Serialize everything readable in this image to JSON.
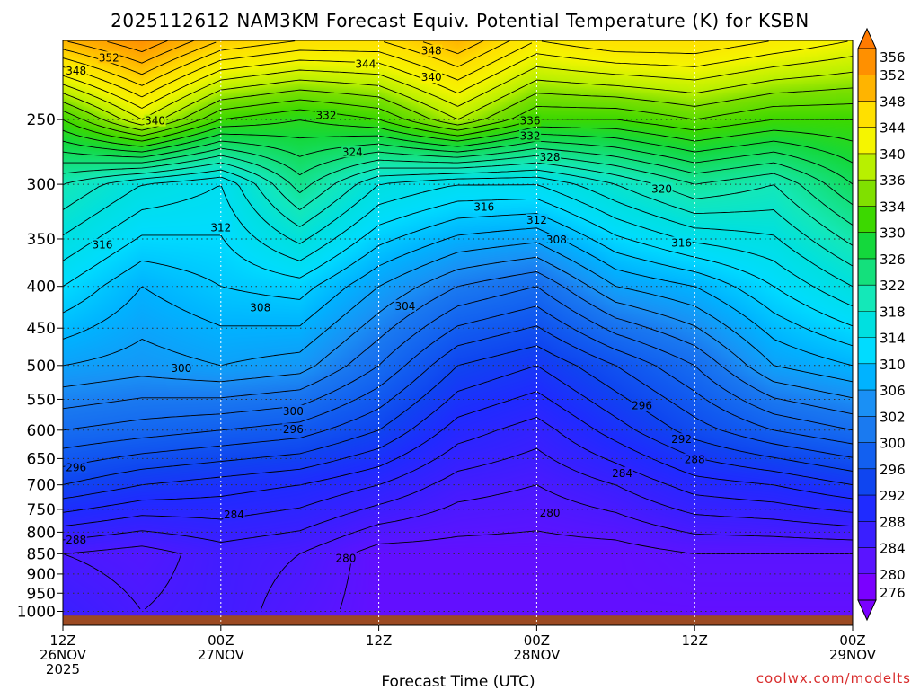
{
  "title": "2025112612 NAM3KM Forecast Equiv. Potential Temperature (K) for KSBN",
  "xlabel": "Forecast Time (UTC)",
  "credit": "coolwx.com/modelts",
  "colors": {
    "ground": "#9c4a22",
    "grid": "#333333",
    "time_grid": "#ffffff",
    "contour": "#000000"
  },
  "chart_data": {
    "type": "heatmap",
    "title": "2025112612 NAM3KM Forecast Equiv. Potential Temperature (K) for KSBN",
    "xlabel": "Forecast Time (UTC)",
    "ylabel": "",
    "x_range_hours": [
      0,
      60
    ],
    "y_range_hPa": [
      1040,
      200
    ],
    "y_ticks": [
      250,
      300,
      350,
      400,
      450,
      500,
      550,
      600,
      650,
      700,
      750,
      800,
      850,
      900,
      950,
      1000
    ],
    "x_ticks": [
      {
        "hour": 0,
        "label": [
          "12Z",
          "26NOV",
          "2025"
        ]
      },
      {
        "hour": 12,
        "label": [
          "00Z",
          "27NOV"
        ]
      },
      {
        "hour": 24,
        "label": [
          "12Z"
        ]
      },
      {
        "hour": 36,
        "label": [
          "00Z",
          "28NOV"
        ]
      },
      {
        "hour": 48,
        "label": [
          "12Z"
        ]
      },
      {
        "hour": 60,
        "label": [
          "00Z",
          "29NOV"
        ]
      }
    ],
    "surface_pressure_hPa": 1012,
    "colorbar": {
      "levels": [
        276,
        280,
        284,
        288,
        292,
        296,
        300,
        302,
        306,
        310,
        314,
        318,
        322,
        326,
        330,
        334,
        336,
        340,
        344,
        348,
        352,
        356
      ],
      "colors": [
        "#7a00ff",
        "#5a14ff",
        "#3a1fff",
        "#1f2bff",
        "#0f45f0",
        "#1260f0",
        "#1a7af0",
        "#1a90f5",
        "#00b3ff",
        "#00dcff",
        "#00e0e0",
        "#14e8b8",
        "#14e07c",
        "#14d83c",
        "#3cd800",
        "#80e000",
        "#b8f000",
        "#f5f500",
        "#ffe000",
        "#ffb400",
        "#ff9000",
        "#ff7a00"
      ]
    },
    "profiles": [
      {
        "hour": 0,
        "points": [
          [
            1000,
            284
          ],
          [
            850,
            282
          ],
          [
            700,
            292
          ],
          [
            600,
            298
          ],
          [
            500,
            304
          ],
          [
            400,
            310
          ],
          [
            300,
            318
          ],
          [
            250,
            330
          ],
          [
            200,
            348
          ]
        ]
      },
      {
        "hour": 6,
        "points": [
          [
            1000,
            282
          ],
          [
            850,
            281
          ],
          [
            700,
            290
          ],
          [
            600,
            297
          ],
          [
            500,
            303
          ],
          [
            400,
            306
          ],
          [
            300,
            314
          ],
          [
            250,
            338
          ],
          [
            200,
            352
          ]
        ]
      },
      {
        "hour": 12,
        "points": [
          [
            1000,
            283
          ],
          [
            850,
            283
          ],
          [
            700,
            289
          ],
          [
            600,
            296
          ],
          [
            500,
            304
          ],
          [
            400,
            308
          ],
          [
            300,
            312
          ],
          [
            250,
            330
          ],
          [
            200,
            346
          ]
        ]
      },
      {
        "hour": 18,
        "points": [
          [
            1000,
            281
          ],
          [
            850,
            282
          ],
          [
            700,
            288
          ],
          [
            600,
            295
          ],
          [
            500,
            303
          ],
          [
            400,
            309
          ],
          [
            300,
            321
          ],
          [
            250,
            328
          ],
          [
            200,
            344
          ]
        ]
      },
      {
        "hour": 24,
        "points": [
          [
            1000,
            279
          ],
          [
            850,
            279
          ],
          [
            700,
            286
          ],
          [
            600,
            292
          ],
          [
            500,
            298
          ],
          [
            400,
            304
          ],
          [
            300,
            314
          ],
          [
            250,
            330
          ],
          [
            200,
            344
          ]
        ]
      },
      {
        "hour": 30,
        "points": [
          [
            1000,
            279
          ],
          [
            850,
            279
          ],
          [
            700,
            283
          ],
          [
            600,
            287
          ],
          [
            500,
            292
          ],
          [
            400,
            300
          ],
          [
            300,
            312
          ],
          [
            250,
            336
          ],
          [
            200,
            348
          ]
        ]
      },
      {
        "hour": 36,
        "points": [
          [
            1000,
            279
          ],
          [
            850,
            279
          ],
          [
            700,
            282
          ],
          [
            600,
            285
          ],
          [
            500,
            290
          ],
          [
            400,
            298
          ],
          [
            300,
            312
          ],
          [
            250,
            330
          ],
          [
            200,
            342
          ]
        ]
      },
      {
        "hour": 42,
        "points": [
          [
            1000,
            279
          ],
          [
            850,
            279
          ],
          [
            700,
            284
          ],
          [
            600,
            289
          ],
          [
            500,
            294
          ],
          [
            400,
            304
          ],
          [
            300,
            316
          ],
          [
            250,
            330
          ],
          [
            200,
            344
          ]
        ]
      },
      {
        "hour": 48,
        "points": [
          [
            1000,
            279
          ],
          [
            850,
            280
          ],
          [
            700,
            287
          ],
          [
            600,
            293
          ],
          [
            500,
            298
          ],
          [
            400,
            306
          ],
          [
            300,
            320
          ],
          [
            250,
            332
          ],
          [
            200,
            344
          ]
        ]
      },
      {
        "hour": 54,
        "points": [
          [
            1000,
            279
          ],
          [
            850,
            280
          ],
          [
            700,
            288
          ],
          [
            600,
            296
          ],
          [
            500,
            304
          ],
          [
            400,
            310
          ],
          [
            300,
            318
          ],
          [
            250,
            330
          ],
          [
            200,
            342
          ]
        ]
      },
      {
        "hour": 60,
        "points": [
          [
            1000,
            279
          ],
          [
            850,
            280
          ],
          [
            700,
            290
          ],
          [
            600,
            298
          ],
          [
            500,
            306
          ],
          [
            400,
            314
          ],
          [
            300,
            324
          ],
          [
            250,
            330
          ],
          [
            200,
            340
          ]
        ]
      }
    ],
    "contour_labels": [
      {
        "hour": 3.5,
        "hPa": 210,
        "value": "352"
      },
      {
        "hour": 1.0,
        "hPa": 218,
        "value": "348"
      },
      {
        "hour": 28.0,
        "hPa": 206,
        "value": "348"
      },
      {
        "hour": 23.0,
        "hPa": 214,
        "value": "344"
      },
      {
        "hour": 28.0,
        "hPa": 222,
        "value": "340"
      },
      {
        "hour": 7.0,
        "hPa": 251,
        "value": "340"
      },
      {
        "hour": 20.0,
        "hPa": 247,
        "value": "332"
      },
      {
        "hour": 35.5,
        "hPa": 251,
        "value": "336"
      },
      {
        "hour": 35.5,
        "hPa": 262,
        "value": "332"
      },
      {
        "hour": 22.0,
        "hPa": 274,
        "value": "324"
      },
      {
        "hour": 37.0,
        "hPa": 278,
        "value": "328"
      },
      {
        "hour": 45.5,
        "hPa": 304,
        "value": "320"
      },
      {
        "hour": 32.0,
        "hPa": 320,
        "value": "316"
      },
      {
        "hour": 36.0,
        "hPa": 332,
        "value": "312"
      },
      {
        "hour": 12.0,
        "hPa": 339,
        "value": "312"
      },
      {
        "hour": 3.0,
        "hPa": 356,
        "value": "316"
      },
      {
        "hour": 37.5,
        "hPa": 351,
        "value": "308"
      },
      {
        "hour": 47.0,
        "hPa": 354,
        "value": "316"
      },
      {
        "hour": 26.0,
        "hPa": 423,
        "value": "304"
      },
      {
        "hour": 15.0,
        "hPa": 425,
        "value": "308"
      },
      {
        "hour": 9.0,
        "hPa": 504,
        "value": "300"
      },
      {
        "hour": 17.5,
        "hPa": 569,
        "value": "300"
      },
      {
        "hour": 17.5,
        "hPa": 599,
        "value": "296"
      },
      {
        "hour": 44.0,
        "hPa": 560,
        "value": "296"
      },
      {
        "hour": 47.0,
        "hPa": 616,
        "value": "292"
      },
      {
        "hour": 48.0,
        "hPa": 652,
        "value": "288"
      },
      {
        "hour": 42.5,
        "hPa": 678,
        "value": "284"
      },
      {
        "hour": 1.0,
        "hPa": 667,
        "value": "296"
      },
      {
        "hour": 13.0,
        "hPa": 762,
        "value": "284"
      },
      {
        "hour": 1.0,
        "hPa": 818,
        "value": "288"
      },
      {
        "hour": 21.5,
        "hPa": 861,
        "value": "280"
      },
      {
        "hour": 37.0,
        "hPa": 758,
        "value": "280"
      }
    ]
  }
}
